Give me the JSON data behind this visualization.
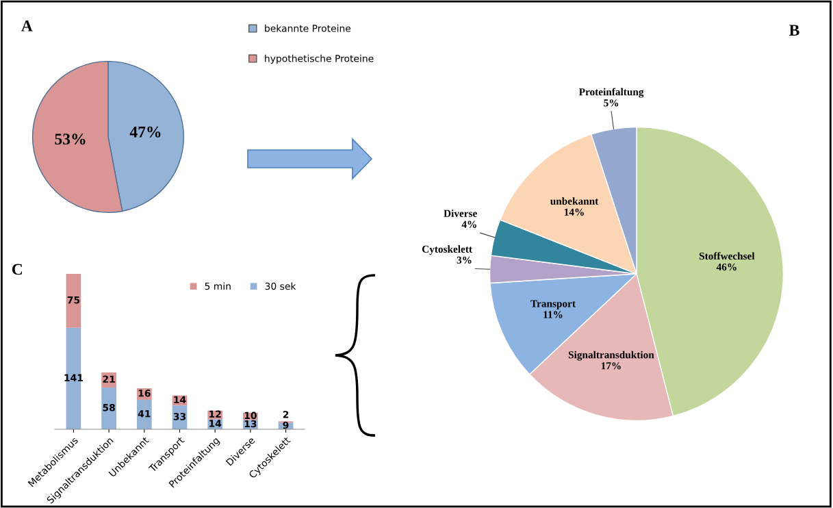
{
  "chart_data": [
    {
      "type": "pie",
      "title": "A",
      "categories": [
        "bekannte Proteine",
        "hypothetische Proteine"
      ],
      "values": [
        47,
        53
      ],
      "colors": [
        "#95b3d7",
        "#d99694"
      ],
      "value_labels": [
        "47%",
        "53%"
      ],
      "legend": "right"
    },
    {
      "type": "pie",
      "title": "B",
      "categories": [
        "Stoffwechsel",
        "Signaltransduktion",
        "Transport",
        "Cytoskelett",
        "Diverse",
        "unbekannt",
        "Proteinfaltung"
      ],
      "values": [
        46,
        17,
        11,
        3,
        4,
        14,
        5
      ],
      "colors": [
        "#c3d69b",
        "#e6b9b8",
        "#8db3e2",
        "#b3a2c7",
        "#31859c",
        "#fcd5b5",
        "#95a9d0"
      ],
      "value_labels": [
        "46%",
        "17%",
        "11%",
        "3%",
        "4%",
        "14%",
        "5%"
      ],
      "legend": false
    },
    {
      "type": "bar",
      "title": "C",
      "stacked": true,
      "data_labels": true,
      "legend": "top right",
      "categories": [
        "Metabolismus",
        "Signaltransduktion",
        "Unbekannt",
        "Transport",
        "Proteinfaltung",
        "Diverse",
        "Cytoskelett"
      ],
      "series": [
        {
          "name": "30 sek",
          "color": "#95b3d7",
          "values": [
            141,
            58,
            41,
            33,
            14,
            13,
            9
          ]
        },
        {
          "name": "5 min",
          "color": "#d99694",
          "values": [
            75,
            21,
            16,
            14,
            12,
            10,
            2
          ]
        }
      ]
    }
  ]
}
